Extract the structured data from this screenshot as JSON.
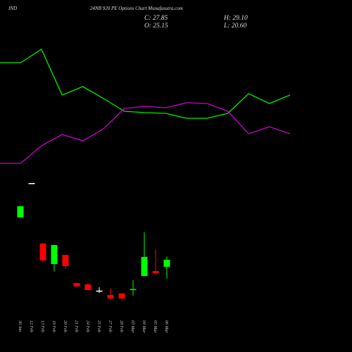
{
  "chart_data": [
    {
      "type": "candlestick",
      "symbol": "IND",
      "title": "24NB 920 PE Options Chart Munafasutra.com",
      "close_label": "C: 27.85",
      "high_label": "H: 29.10",
      "open_label": "O: 25.15",
      "low_label": "L: 20.60",
      "categories": [
        "30 Jan",
        "12 Feb",
        "13 Feb",
        "19 Feb",
        "20 Feb",
        "21 Feb",
        "24 Feb",
        "25 Feb",
        "27 Feb",
        "28 Feb",
        "03 Mar",
        "04 Mar",
        "05 Mar",
        "06 Mar"
      ],
      "open": [
        44.1,
        57.3,
        34.1,
        26.2,
        29.7,
        18.9,
        18.4,
        16.0,
        14.3,
        14.9,
        16.4,
        21.6,
        23.5,
        25.15
      ],
      "high": [
        48.4,
        57.3,
        34.1,
        33.5,
        29.7,
        18.9,
        18.9,
        17.3,
        17.0,
        14.9,
        20.0,
        38.4,
        31.9,
        29.1
      ],
      "low": [
        44.1,
        57.3,
        27.0,
        23.3,
        24.5,
        17.6,
        16.2,
        15.1,
        12.7,
        12.2,
        14.1,
        21.6,
        21.9,
        20.6
      ],
      "close": [
        48.4,
        57.3,
        27.6,
        33.5,
        25.4,
        17.6,
        16.2,
        16.0,
        13.0,
        13.0,
        16.6,
        28.9,
        22.7,
        27.85
      ],
      "up_color": "#00ff00",
      "down_color": "#ff0000",
      "flat_color": "#ffffff",
      "ylim": [
        0,
        70
      ]
    },
    {
      "type": "line",
      "x": [
        0,
        1,
        2,
        3,
        4,
        5,
        6,
        7,
        8,
        9,
        10,
        11,
        12,
        13,
        14
      ],
      "xlim": [
        0,
        14
      ],
      "ylim": [
        0,
        100
      ],
      "series": [
        {
          "color": "#00ee00",
          "values": [
            80.5,
            80.5,
            90,
            57.5,
            63.5,
            55,
            46,
            45,
            44.5,
            41,
            41,
            44.5,
            58.5,
            51.5,
            57.5
          ]
        },
        {
          "color": "#cc00cc",
          "values": [
            9,
            9,
            21.5,
            29.5,
            25,
            33.5,
            48,
            49.5,
            48.5,
            52,
            51.5,
            46,
            30,
            35,
            30
          ]
        }
      ]
    }
  ]
}
